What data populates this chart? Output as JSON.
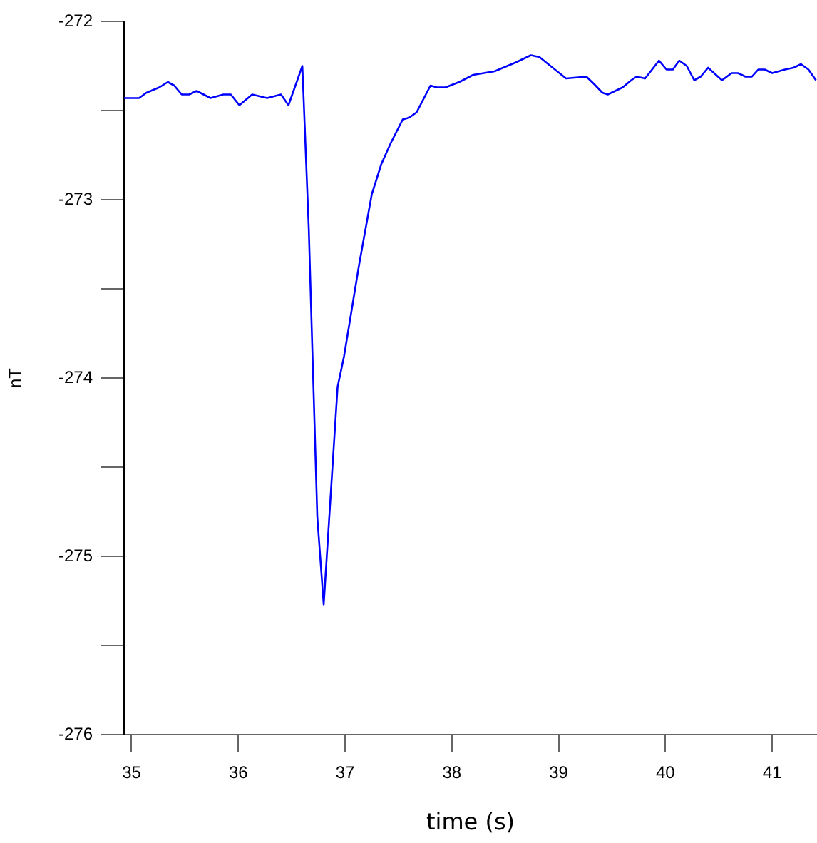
{
  "chart_data": {
    "type": "line",
    "xlabel": "time (s)",
    "ylabel": "nT",
    "x": [
      34.93,
      35.07,
      35.14,
      35.26,
      35.34,
      35.4,
      35.47,
      35.54,
      35.61,
      35.74,
      35.86,
      35.93,
      36.01,
      36.13,
      36.27,
      36.4,
      36.47,
      36.6,
      36.66,
      36.74,
      36.8,
      36.93,
      36.99,
      37.13,
      37.25,
      37.34,
      37.43,
      37.54,
      37.6,
      37.67,
      37.8,
      37.86,
      37.94,
      38.07,
      38.2,
      38.4,
      38.6,
      38.74,
      38.82,
      39.07,
      39.26,
      39.33,
      39.41,
      39.46,
      39.6,
      39.68,
      39.73,
      39.81,
      39.94,
      40.01,
      40.07,
      40.13,
      40.2,
      40.27,
      40.33,
      40.4,
      40.53,
      40.62,
      40.68,
      40.75,
      40.81,
      40.87,
      40.93,
      41.0,
      41.12,
      41.2,
      41.27,
      41.34,
      41.41
    ],
    "series": [
      {
        "color": "#0000ff",
        "values": [
          -272.43,
          -272.43,
          -272.4,
          -272.37,
          -272.34,
          -272.36,
          -272.41,
          -272.41,
          -272.39,
          -272.43,
          -272.41,
          -272.41,
          -272.47,
          -272.41,
          -272.43,
          -272.41,
          -272.47,
          -272.25,
          -273.16,
          -274.78,
          -275.27,
          -274.05,
          -273.88,
          -273.37,
          -272.97,
          -272.8,
          -272.68,
          -272.55,
          -272.54,
          -272.51,
          -272.36,
          -272.37,
          -272.37,
          -272.34,
          -272.3,
          -272.28,
          -272.23,
          -272.19,
          -272.2,
          -272.32,
          -272.31,
          -272.35,
          -272.4,
          -272.41,
          -272.37,
          -272.33,
          -272.31,
          -272.32,
          -272.22,
          -272.27,
          -272.27,
          -272.22,
          -272.25,
          -272.33,
          -272.31,
          -272.26,
          -272.33,
          -272.29,
          -272.29,
          -272.31,
          -272.31,
          -272.27,
          -272.27,
          -272.29,
          -272.27,
          -272.26,
          -272.24,
          -272.27,
          -272.33
        ]
      }
    ],
    "xlim": [
      34.93,
      41.42
    ],
    "xticks": [
      35,
      36,
      37,
      38,
      39,
      40,
      41
    ],
    "ylim": [
      -276,
      -272
    ],
    "yticks": [
      -276,
      {
        "value": -275.5,
        "label": null
      },
      -275,
      {
        "value": -274.5,
        "label": null
      },
      -274,
      {
        "value": -273.5,
        "label": null
      },
      -273,
      {
        "value": -272.5,
        "label": null
      },
      -272
    ],
    "grid": false,
    "legend": false,
    "marker": "none",
    "line_style": "solid"
  }
}
